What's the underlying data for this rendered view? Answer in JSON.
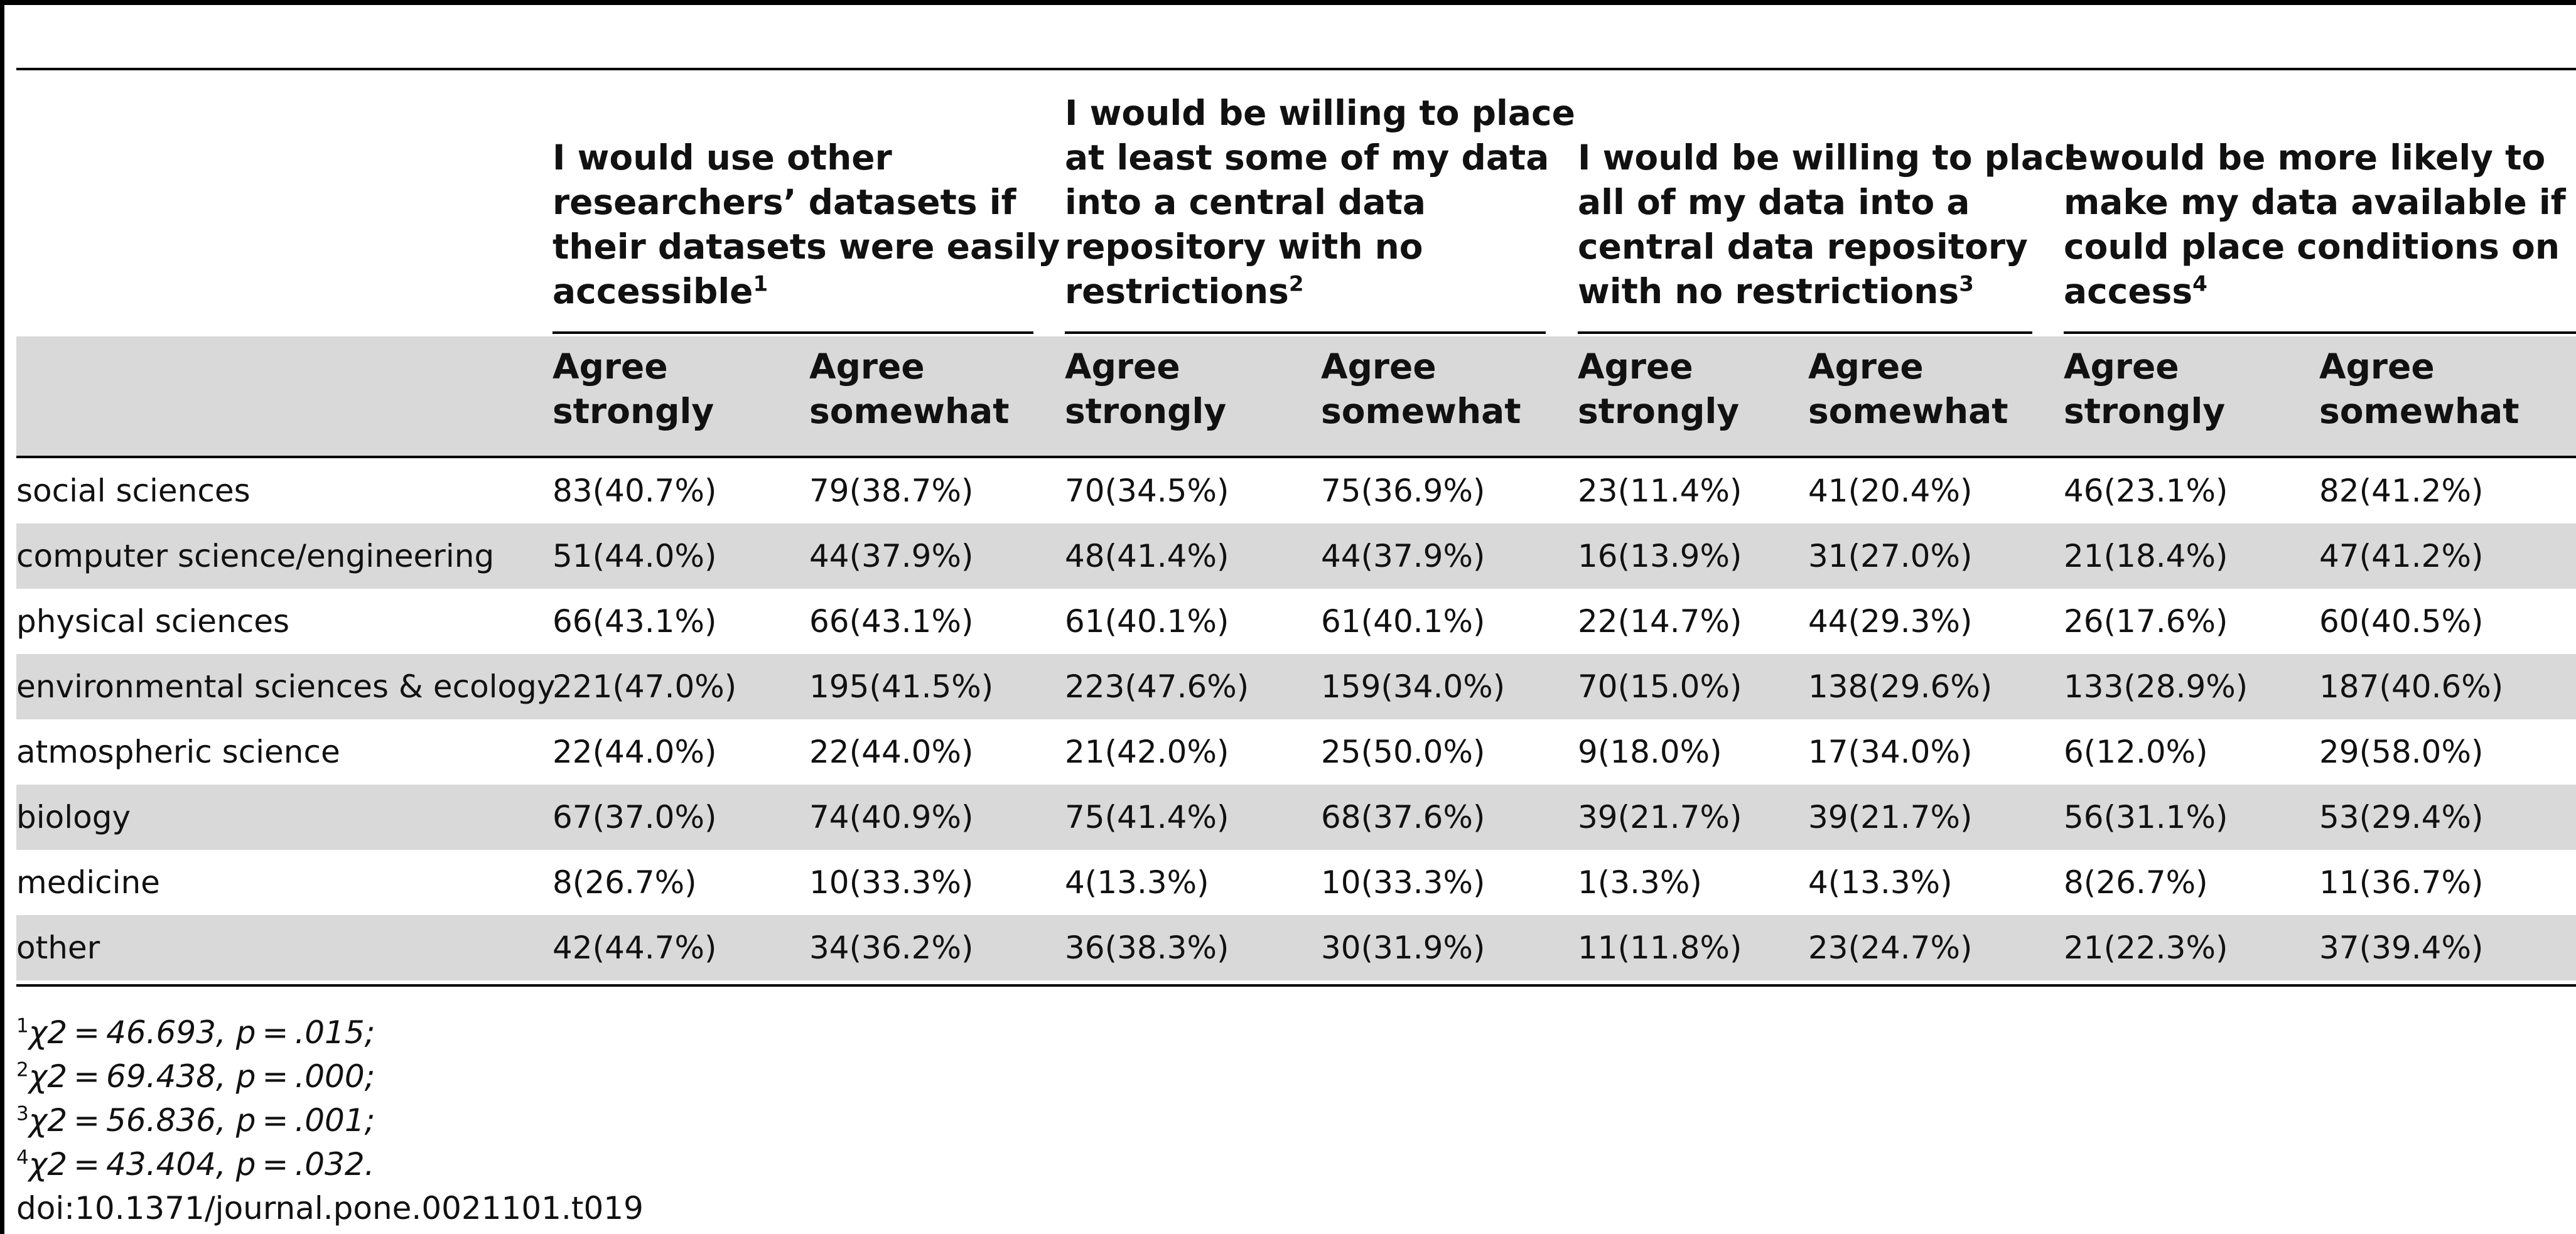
{
  "table": {
    "groups": [
      {
        "lines": [
          "I would use other",
          "researchers’ datasets if",
          "their datasets were easily",
          "accessible"
        ],
        "sup": "1"
      },
      {
        "lines": [
          "I would be willing to place",
          "at least some of my data",
          "into a central data",
          "repository with no",
          "restrictions"
        ],
        "sup": "2"
      },
      {
        "lines": [
          "I would be willing to place",
          "all of my data into a",
          "central data repository",
          "with no restrictions"
        ],
        "sup": "3"
      },
      {
        "lines": [
          "I would be more likely to",
          "make my data available if I",
          "could place conditions on",
          "access"
        ],
        "sup": "4"
      }
    ],
    "subheaders": [
      [
        "Agree",
        "strongly"
      ],
      [
        "Agree",
        "somewhat"
      ],
      [
        "Agree",
        "strongly"
      ],
      [
        "Agree",
        "somewhat"
      ],
      [
        "Agree",
        "strongly"
      ],
      [
        "Agree",
        "somewhat"
      ],
      [
        "Agree",
        "strongly"
      ],
      [
        "Agree",
        "somewhat"
      ]
    ],
    "rows": [
      {
        "label": "social sciences",
        "cells": [
          "83(40.7%)",
          "79(38.7%)",
          "70(34.5%)",
          "75(36.9%)",
          "23(11.4%)",
          "41(20.4%)",
          "46(23.1%)",
          "82(41.2%)"
        ]
      },
      {
        "label": "computer science/engineering",
        "cells": [
          "51(44.0%)",
          "44(37.9%)",
          "48(41.4%)",
          "44(37.9%)",
          "16(13.9%)",
          "31(27.0%)",
          "21(18.4%)",
          "47(41.2%)"
        ]
      },
      {
        "label": "physical sciences",
        "cells": [
          "66(43.1%)",
          "66(43.1%)",
          "61(40.1%)",
          "61(40.1%)",
          "22(14.7%)",
          "44(29.3%)",
          "26(17.6%)",
          "60(40.5%)"
        ]
      },
      {
        "label": "environmental sciences & ecology",
        "cells": [
          "221(47.0%)",
          "195(41.5%)",
          "223(47.6%)",
          "159(34.0%)",
          "70(15.0%)",
          "138(29.6%)",
          "133(28.9%)",
          "187(40.6%)"
        ]
      },
      {
        "label": "atmospheric science",
        "cells": [
          "22(44.0%)",
          "22(44.0%)",
          "21(42.0%)",
          "25(50.0%)",
          "9(18.0%)",
          "17(34.0%)",
          "6(12.0%)",
          "29(58.0%)"
        ]
      },
      {
        "label": "biology",
        "cells": [
          "67(37.0%)",
          "74(40.9%)",
          "75(41.4%)",
          "68(37.6%)",
          "39(21.7%)",
          "39(21.7%)",
          "56(31.1%)",
          "53(29.4%)"
        ]
      },
      {
        "label": "medicine",
        "cells": [
          "8(26.7%)",
          "10(33.3%)",
          "4(13.3%)",
          "10(33.3%)",
          "1(3.3%)",
          "4(13.3%)",
          "8(26.7%)",
          "11(36.7%)"
        ]
      },
      {
        "label": "other",
        "cells": [
          "42(44.7%)",
          "34(36.2%)",
          "36(38.3%)",
          "30(31.9%)",
          "11(11.8%)",
          "23(24.7%)",
          "21(22.3%)",
          "37(39.4%)"
        ]
      }
    ]
  },
  "footnotes": [
    {
      "num": "1",
      "text": "χ2 = 46.693, p = .015;"
    },
    {
      "num": "2",
      "text": "χ2 = 69.438, p = .000;"
    },
    {
      "num": "3",
      "text": "χ2 = 56.836, p = .001;"
    },
    {
      "num": "4",
      "text": "χ2 = 43.404, p = .032."
    }
  ],
  "doi": "doi:10.1371/journal.pone.0021101.t019"
}
